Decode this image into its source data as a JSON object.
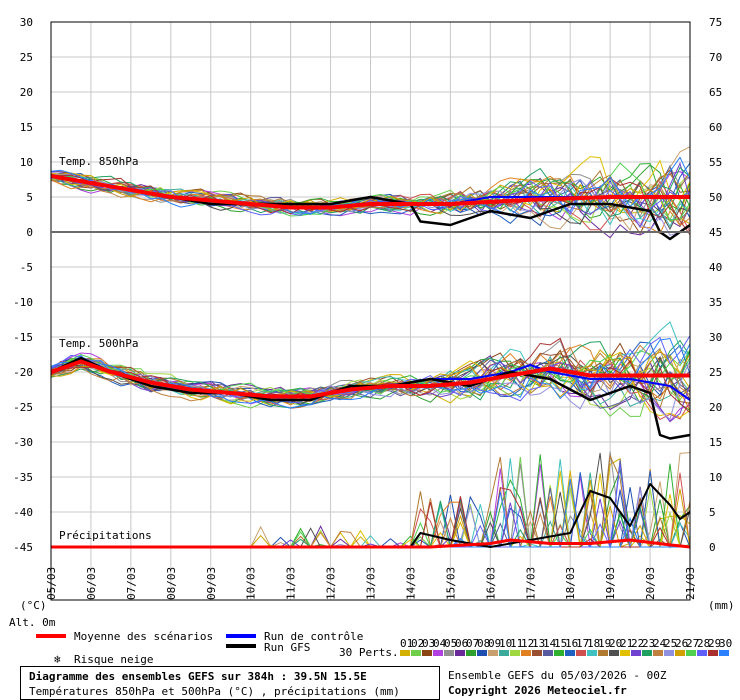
{
  "chart_data": {
    "type": "line",
    "left_axis": {
      "unit": "(°C)",
      "min": -45,
      "max": 30,
      "step": 5,
      "ticks": [
        "30",
        "25",
        "20",
        "15",
        "10",
        "5",
        "0",
        "-5",
        "-10",
        "-15",
        "-20",
        "-25",
        "-30",
        "-35",
        "-40",
        "-45"
      ]
    },
    "right_axis": {
      "unit": "(mm)",
      "min": 0,
      "max": 75,
      "step": 5,
      "ticks": [
        "75",
        "70",
        "65",
        "60",
        "55",
        "50",
        "45",
        "40",
        "35",
        "30",
        "25",
        "20",
        "15",
        "10",
        "5",
        "0"
      ]
    },
    "x_ticks": [
      "05/03",
      "06/03",
      "07/03",
      "08/03",
      "09/03",
      "10/03",
      "11/03",
      "12/03",
      "13/03",
      "14/03",
      "15/03",
      "16/03",
      "17/03",
      "18/03",
      "19/03",
      "20/03",
      "21/03"
    ],
    "x_extra_label": "Alt. 0m",
    "panels": [
      {
        "label": "Temp. 850hPa",
        "scale": "left"
      },
      {
        "label": "Temp. 500hPa",
        "scale": "left"
      },
      {
        "label": "Précipitations",
        "scale": "right"
      }
    ],
    "t850_mean": [
      [
        0,
        8
      ],
      [
        4,
        7
      ],
      [
        8,
        6
      ],
      [
        12,
        5
      ],
      [
        16,
        4.5
      ],
      [
        20,
        4
      ],
      [
        24,
        3.5
      ],
      [
        28,
        3.5
      ],
      [
        32,
        4
      ],
      [
        36,
        4
      ],
      [
        40,
        4
      ],
      [
        44,
        4.3
      ],
      [
        48,
        4.6
      ],
      [
        52,
        4.8
      ],
      [
        56,
        5
      ],
      [
        60,
        5
      ],
      [
        64,
        5
      ]
    ],
    "t850_gfs": [
      [
        0,
        8
      ],
      [
        4,
        7
      ],
      [
        8,
        6
      ],
      [
        12,
        5
      ],
      [
        16,
        4
      ],
      [
        20,
        4
      ],
      [
        24,
        4
      ],
      [
        28,
        4
      ],
      [
        32,
        5
      ],
      [
        36,
        4
      ],
      [
        37,
        1.5
      ],
      [
        40,
        1
      ],
      [
        44,
        3
      ],
      [
        48,
        2
      ],
      [
        52,
        4
      ],
      [
        56,
        4
      ],
      [
        60,
        3
      ],
      [
        61,
        0
      ],
      [
        62,
        -1
      ],
      [
        64,
        1
      ]
    ],
    "t850_control": [
      [
        0,
        8
      ],
      [
        4,
        7
      ],
      [
        8,
        6
      ],
      [
        12,
        5
      ],
      [
        16,
        4
      ],
      [
        20,
        4
      ],
      [
        24,
        4
      ],
      [
        28,
        4
      ],
      [
        32,
        5
      ],
      [
        36,
        4
      ],
      [
        40,
        4
      ],
      [
        44,
        5
      ],
      [
        48,
        5
      ],
      [
        52,
        5
      ],
      [
        56,
        5
      ],
      [
        60,
        5
      ],
      [
        64,
        5
      ]
    ],
    "t500_mean": [
      [
        0,
        -20
      ],
      [
        3,
        -18.5
      ],
      [
        6,
        -20
      ],
      [
        10,
        -21.5
      ],
      [
        14,
        -22.5
      ],
      [
        18,
        -23
      ],
      [
        22,
        -23.5
      ],
      [
        26,
        -23.5
      ],
      [
        30,
        -22.5
      ],
      [
        34,
        -22
      ],
      [
        38,
        -22
      ],
      [
        42,
        -21.5
      ],
      [
        46,
        -20.5
      ],
      [
        50,
        -19.5
      ],
      [
        54,
        -20.5
      ],
      [
        58,
        -20.5
      ],
      [
        62,
        -20.5
      ],
      [
        64,
        -20.5
      ]
    ],
    "t500_gfs": [
      [
        0,
        -20
      ],
      [
        3,
        -18
      ],
      [
        6,
        -20
      ],
      [
        10,
        -22
      ],
      [
        14,
        -23
      ],
      [
        18,
        -23
      ],
      [
        22,
        -24
      ],
      [
        26,
        -24
      ],
      [
        30,
        -22
      ],
      [
        34,
        -22
      ],
      [
        38,
        -21
      ],
      [
        42,
        -22
      ],
      [
        46,
        -20
      ],
      [
        50,
        -21
      ],
      [
        54,
        -24
      ],
      [
        56,
        -23
      ],
      [
        58,
        -22
      ],
      [
        60,
        -23
      ],
      [
        61,
        -29
      ],
      [
        62,
        -29.5
      ],
      [
        64,
        -29
      ]
    ],
    "t500_control": [
      [
        0,
        -20
      ],
      [
        3,
        -18
      ],
      [
        6,
        -20
      ],
      [
        10,
        -22
      ],
      [
        14,
        -23
      ],
      [
        18,
        -23
      ],
      [
        22,
        -24
      ],
      [
        26,
        -24
      ],
      [
        30,
        -22
      ],
      [
        34,
        -22
      ],
      [
        38,
        -21
      ],
      [
        42,
        -21
      ],
      [
        46,
        -20
      ],
      [
        48,
        -19
      ],
      [
        50,
        -20
      ],
      [
        54,
        -21
      ],
      [
        58,
        -21
      ],
      [
        62,
        -22
      ],
      [
        64,
        -24
      ]
    ],
    "precip_mean": [
      [
        0,
        0
      ],
      [
        30,
        0
      ],
      [
        38,
        0
      ],
      [
        44,
        0.5
      ],
      [
        46,
        1
      ],
      [
        50,
        0.5
      ],
      [
        54,
        0.5
      ],
      [
        58,
        1
      ],
      [
        62,
        0.3
      ],
      [
        64,
        0
      ]
    ],
    "precip_gfs": [
      [
        0,
        0
      ],
      [
        36,
        0
      ],
      [
        37,
        2
      ],
      [
        40,
        1
      ],
      [
        44,
        0
      ],
      [
        48,
        1
      ],
      [
        52,
        2
      ],
      [
        54,
        8
      ],
      [
        56,
        7
      ],
      [
        58,
        3
      ],
      [
        60,
        9
      ],
      [
        62,
        6
      ],
      [
        63,
        4
      ],
      [
        64,
        5
      ]
    ],
    "legend": {
      "mean": "Moyenne des scénarios",
      "control": "Run de contrôle",
      "gfs": "Run GFS",
      "snow": "Risque neige",
      "perts_label": "30 Perts.",
      "pert_numbers": [
        "01",
        "02",
        "03",
        "04",
        "05",
        "06",
        "07",
        "08",
        "09",
        "10",
        "11",
        "12",
        "13",
        "14",
        "15",
        "16",
        "17",
        "18",
        "19",
        "20",
        "21",
        "22",
        "23",
        "24",
        "25",
        "26",
        "27",
        "28",
        "29",
        "30"
      ],
      "pert_colors": [
        "#d4b000",
        "#6fcf4a",
        "#8b4513",
        "#b040e0",
        "#909090",
        "#6a2a9a",
        "#2ea02e",
        "#1e4fb0",
        "#c8a070",
        "#3aaa9a",
        "#a0d840",
        "#e08020",
        "#9a5030",
        "#5a5aa0",
        "#30b030",
        "#2060c0",
        "#d05050",
        "#40c0c0",
        "#b07a30",
        "#505050",
        "#e0c000",
        "#7040d0",
        "#20a060",
        "#c08040",
        "#9090e0",
        "#d0a000",
        "#50d050",
        "#6060ff",
        "#aa3030",
        "#2a80ff"
      ]
    },
    "colors": {
      "mean": "#ff0000",
      "control": "#0000ff",
      "gfs": "#000000",
      "zero_line": "#6a6a6a"
    }
  },
  "footer": {
    "title": "Diagramme des ensembles GEFS sur 384h : 39.5N 15.5E",
    "subtitle": "Températures 850hPa et 500hPa (°C) , précipitations (mm)",
    "run_info": "Ensemble GEFS du 05/03/2026 - 00Z",
    "copyright": "Copyright 2026 Meteociel.fr"
  }
}
